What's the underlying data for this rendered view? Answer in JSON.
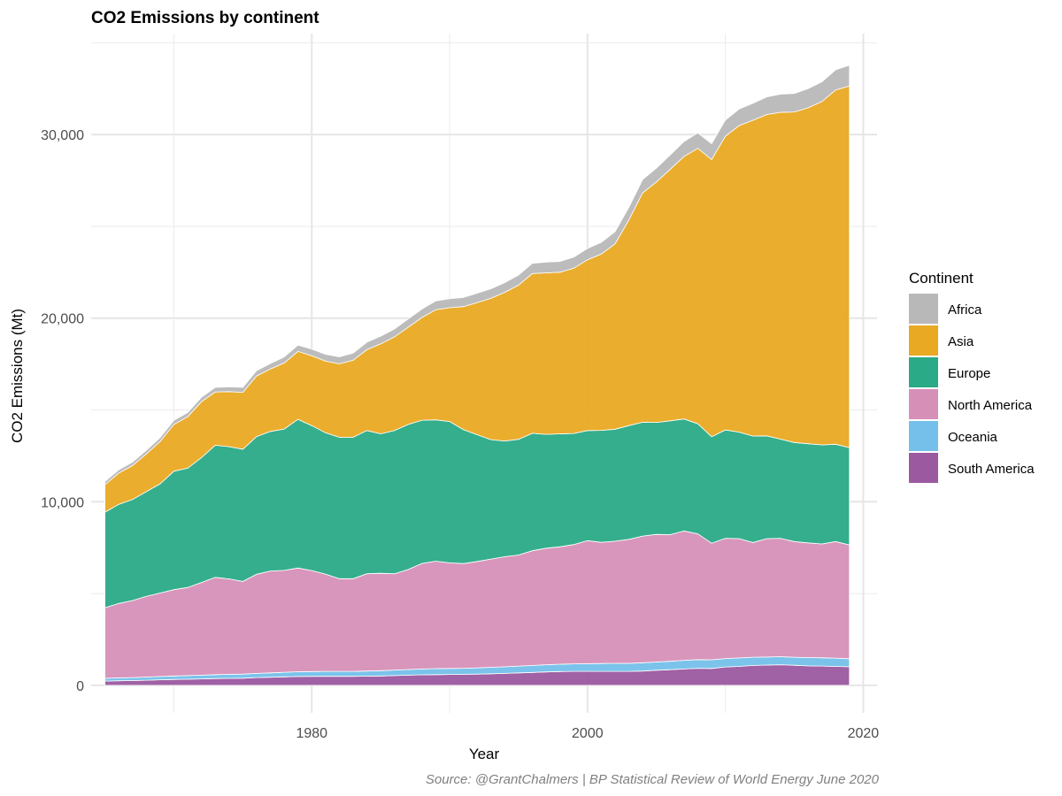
{
  "chart_data": {
    "type": "area",
    "stacked": true,
    "title": "CO2 Emissions by continent",
    "xlabel": "Year",
    "ylabel": "CO2 Emissions (Mt)",
    "caption": "Source: @GrantChalmers | BP Statistical Review of World Energy June 2020",
    "legend_title": "Continent",
    "legend_position": "right",
    "grid": true,
    "xlim": [
      1964,
      2021
    ],
    "ylim": [
      -1500,
      35500
    ],
    "x_ticks": [
      1980,
      2000,
      2020
    ],
    "x_tick_labels": [
      "1980",
      "2000",
      "2020"
    ],
    "y_ticks": [
      0,
      10000,
      20000,
      30000
    ],
    "y_tick_labels": [
      "0",
      "10,000",
      "20,000",
      "30,000"
    ],
    "x": [
      1965,
      1966,
      1967,
      1968,
      1969,
      1970,
      1971,
      1972,
      1973,
      1974,
      1975,
      1976,
      1977,
      1978,
      1979,
      1980,
      1981,
      1982,
      1983,
      1984,
      1985,
      1986,
      1987,
      1988,
      1989,
      1990,
      1991,
      1992,
      1993,
      1994,
      1995,
      1996,
      1997,
      1998,
      1999,
      2000,
      2001,
      2002,
      2003,
      2004,
      2005,
      2006,
      2007,
      2008,
      2009,
      2010,
      2011,
      2012,
      2013,
      2014,
      2015,
      2016,
      2017,
      2018,
      2019
    ],
    "series": [
      {
        "name": "South America",
        "color": "#9b59a0",
        "values": [
          230,
          250,
          260,
          280,
          300,
          320,
          330,
          350,
          370,
          380,
          390,
          420,
          440,
          460,
          480,
          490,
          490,
          490,
          490,
          500,
          510,
          530,
          550,
          570,
          580,
          590,
          600,
          610,
          630,
          650,
          680,
          700,
          730,
          750,
          760,
          760,
          760,
          760,
          760,
          780,
          820,
          850,
          890,
          930,
          920,
          1000,
          1030,
          1080,
          1100,
          1120,
          1090,
          1060,
          1050,
          1030,
          1010
        ]
      },
      {
        "name": "Oceania",
        "color": "#74c0ea",
        "values": [
          150,
          160,
          160,
          170,
          180,
          190,
          200,
          200,
          210,
          220,
          220,
          230,
          240,
          250,
          260,
          260,
          270,
          270,
          270,
          280,
          290,
          300,
          310,
          320,
          330,
          330,
          330,
          340,
          350,
          360,
          370,
          380,
          390,
          400,
          410,
          420,
          430,
          440,
          440,
          450,
          450,
          460,
          470,
          470,
          470,
          460,
          460,
          450,
          440,
          440,
          440,
          450,
          450,
          450,
          440
        ]
      },
      {
        "name": "North America",
        "color": "#d690b8",
        "values": [
          3850,
          4050,
          4200,
          4400,
          4550,
          4700,
          4800,
          5050,
          5300,
          5200,
          5050,
          5400,
          5550,
          5550,
          5650,
          5500,
          5300,
          5050,
          5050,
          5300,
          5300,
          5250,
          5450,
          5750,
          5850,
          5750,
          5700,
          5800,
          5900,
          6000,
          6050,
          6250,
          6350,
          6400,
          6500,
          6700,
          6600,
          6650,
          6750,
          6900,
          6950,
          6900,
          7050,
          6850,
          6350,
          6550,
          6500,
          6250,
          6450,
          6450,
          6300,
          6250,
          6200,
          6350,
          6200
        ]
      },
      {
        "name": "Europe",
        "color": "#2aaa87",
        "values": [
          5200,
          5400,
          5500,
          5700,
          5950,
          6450,
          6500,
          6800,
          7200,
          7200,
          7200,
          7500,
          7600,
          7700,
          8100,
          7900,
          7700,
          7700,
          7700,
          7800,
          7600,
          7800,
          7900,
          7800,
          7700,
          7700,
          7300,
          6900,
          6500,
          6300,
          6300,
          6400,
          6200,
          6150,
          6050,
          6000,
          6100,
          6100,
          6200,
          6200,
          6100,
          6200,
          6100,
          6000,
          5800,
          5900,
          5800,
          5800,
          5600,
          5400,
          5400,
          5400,
          5400,
          5300,
          5300
        ]
      },
      {
        "name": "Asia",
        "color": "#e9a922",
        "values": [
          1500,
          1700,
          1850,
          2050,
          2300,
          2550,
          2800,
          3050,
          2900,
          3000,
          3100,
          3300,
          3400,
          3600,
          3700,
          3800,
          3900,
          4000,
          4200,
          4400,
          4900,
          5100,
          5300,
          5600,
          6000,
          6200,
          6700,
          7200,
          7700,
          8100,
          8400,
          8700,
          8800,
          8800,
          9000,
          9300,
          9600,
          10100,
          11200,
          12500,
          13100,
          13700,
          14300,
          15000,
          15100,
          16000,
          16700,
          17200,
          17500,
          17800,
          18000,
          18300,
          18700,
          19300,
          19700
        ]
      },
      {
        "name": "Africa",
        "color": "#b8b8b8",
        "values": [
          170,
          180,
          190,
          200,
          210,
          220,
          230,
          240,
          250,
          260,
          270,
          290,
          300,
          320,
          340,
          360,
          370,
          380,
          390,
          410,
          420,
          430,
          450,
          460,
          480,
          490,
          500,
          510,
          520,
          530,
          550,
          560,
          580,
          590,
          600,
          620,
          640,
          660,
          690,
          720,
          750,
          780,
          810,
          840,
          860,
          880,
          900,
          930,
          960,
          990,
          1010,
          1040,
          1070,
          1100,
          1130
        ]
      }
    ]
  }
}
